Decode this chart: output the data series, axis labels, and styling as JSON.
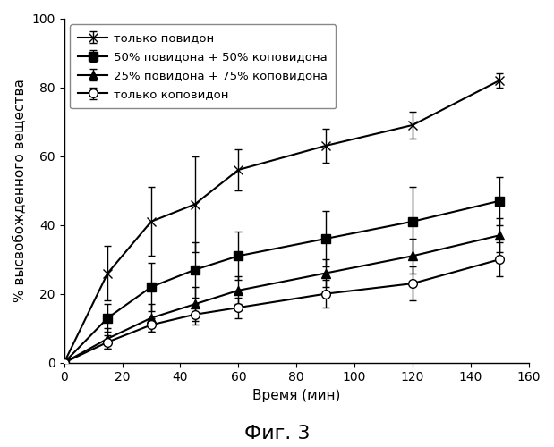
{
  "title": "Фиг. 3",
  "xlabel": "Время (мин)",
  "ylabel": "% высвобожденного вещества",
  "xlim": [
    0,
    160
  ],
  "ylim": [
    0,
    100
  ],
  "xticks": [
    0,
    20,
    40,
    60,
    80,
    100,
    120,
    140,
    160
  ],
  "yticks": [
    0,
    20,
    40,
    60,
    80,
    100
  ],
  "series": [
    {
      "label": "только повидон",
      "marker": "x",
      "color": "#000000",
      "x": [
        0,
        15,
        30,
        45,
        60,
        90,
        120,
        150
      ],
      "y": [
        0,
        26,
        41,
        46,
        56,
        63,
        69,
        82
      ],
      "yerr": [
        0,
        8,
        10,
        14,
        6,
        5,
        4,
        2
      ]
    },
    {
      "label": "50% повидона + 50% коповидона",
      "marker": "s",
      "color": "#000000",
      "x": [
        0,
        15,
        30,
        45,
        60,
        90,
        120,
        150
      ],
      "y": [
        0,
        13,
        22,
        27,
        31,
        36,
        41,
        47
      ],
      "yerr": [
        0,
        4,
        7,
        8,
        7,
        8,
        10,
        7
      ]
    },
    {
      "label": "25% повидона + 75% коповидона",
      "marker": "^",
      "color": "#000000",
      "x": [
        0,
        15,
        30,
        45,
        60,
        90,
        120,
        150
      ],
      "y": [
        0,
        7,
        13,
        17,
        21,
        26,
        31,
        37
      ],
      "yerr": [
        0,
        3,
        4,
        5,
        4,
        4,
        5,
        5
      ]
    },
    {
      "label": "только коповидон",
      "marker": "o",
      "color": "#000000",
      "x": [
        0,
        15,
        30,
        45,
        60,
        90,
        120,
        150
      ],
      "y": [
        0,
        6,
        11,
        14,
        16,
        20,
        23,
        30
      ],
      "yerr": [
        0,
        2,
        2,
        3,
        3,
        4,
        5,
        5
      ]
    }
  ],
  "background_color": "#ffffff",
  "marker_size": 7,
  "linewidth": 1.5,
  "capsize": 3,
  "title_fontsize": 16,
  "label_fontsize": 11,
  "tick_fontsize": 10,
  "legend_fontsize": 9.5
}
